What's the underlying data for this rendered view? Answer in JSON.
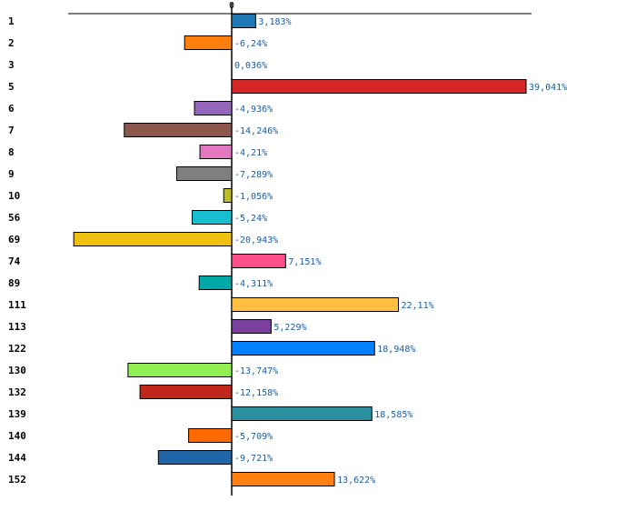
{
  "chart_data": {
    "type": "bar",
    "orientation": "horizontal",
    "title": "",
    "xlabel": "",
    "ylabel": "",
    "xlim": [
      -26,
      40.5
    ],
    "grid": false,
    "zero_tick_label": "0",
    "categories": [
      "1",
      "2",
      "3",
      "5",
      "6",
      "7",
      "8",
      "9",
      "10",
      "56",
      "69",
      "74",
      "89",
      "111",
      "113",
      "122",
      "130",
      "132",
      "139",
      "140",
      "144",
      "152"
    ],
    "values": [
      3.183,
      -6.24,
      0.036,
      39.041,
      -4.936,
      -14.246,
      -4.21,
      -7.289,
      -1.056,
      -5.24,
      -20.943,
      7.151,
      -4.311,
      22.11,
      5.229,
      18.948,
      -13.747,
      -12.158,
      18.585,
      -5.709,
      -9.721,
      13.622
    ],
    "value_labels": [
      "3,183%",
      "-6,24%",
      "0,036%",
      "39,041%",
      "-4,936%",
      "-14,246%",
      "-4,21%",
      "-7,289%",
      "-1,056%",
      "-5,24%",
      "-20,943%",
      "7,151%",
      "-4,311%",
      "22,11%",
      "5,229%",
      "18,948%",
      "-13,747%",
      "-12,158%",
      "18,585%",
      "-5,709%",
      "-9,721%",
      "13,622%"
    ],
    "colors": [
      "#1f77b4",
      "#ff7f0e",
      "#2ca02c",
      "#d62728",
      "#9467bd",
      "#8c564b",
      "#e377c2",
      "#7f7f7f",
      "#bcbd22",
      "#17becf",
      "#f0c010",
      "#ff4f8b",
      "#00a8a8",
      "#ffbf40",
      "#7b3f9e",
      "#0080ff",
      "#90ee50",
      "#c0281c",
      "#2a8f9f",
      "#ff6a00",
      "#2066a8",
      "#ff7f10"
    ]
  }
}
